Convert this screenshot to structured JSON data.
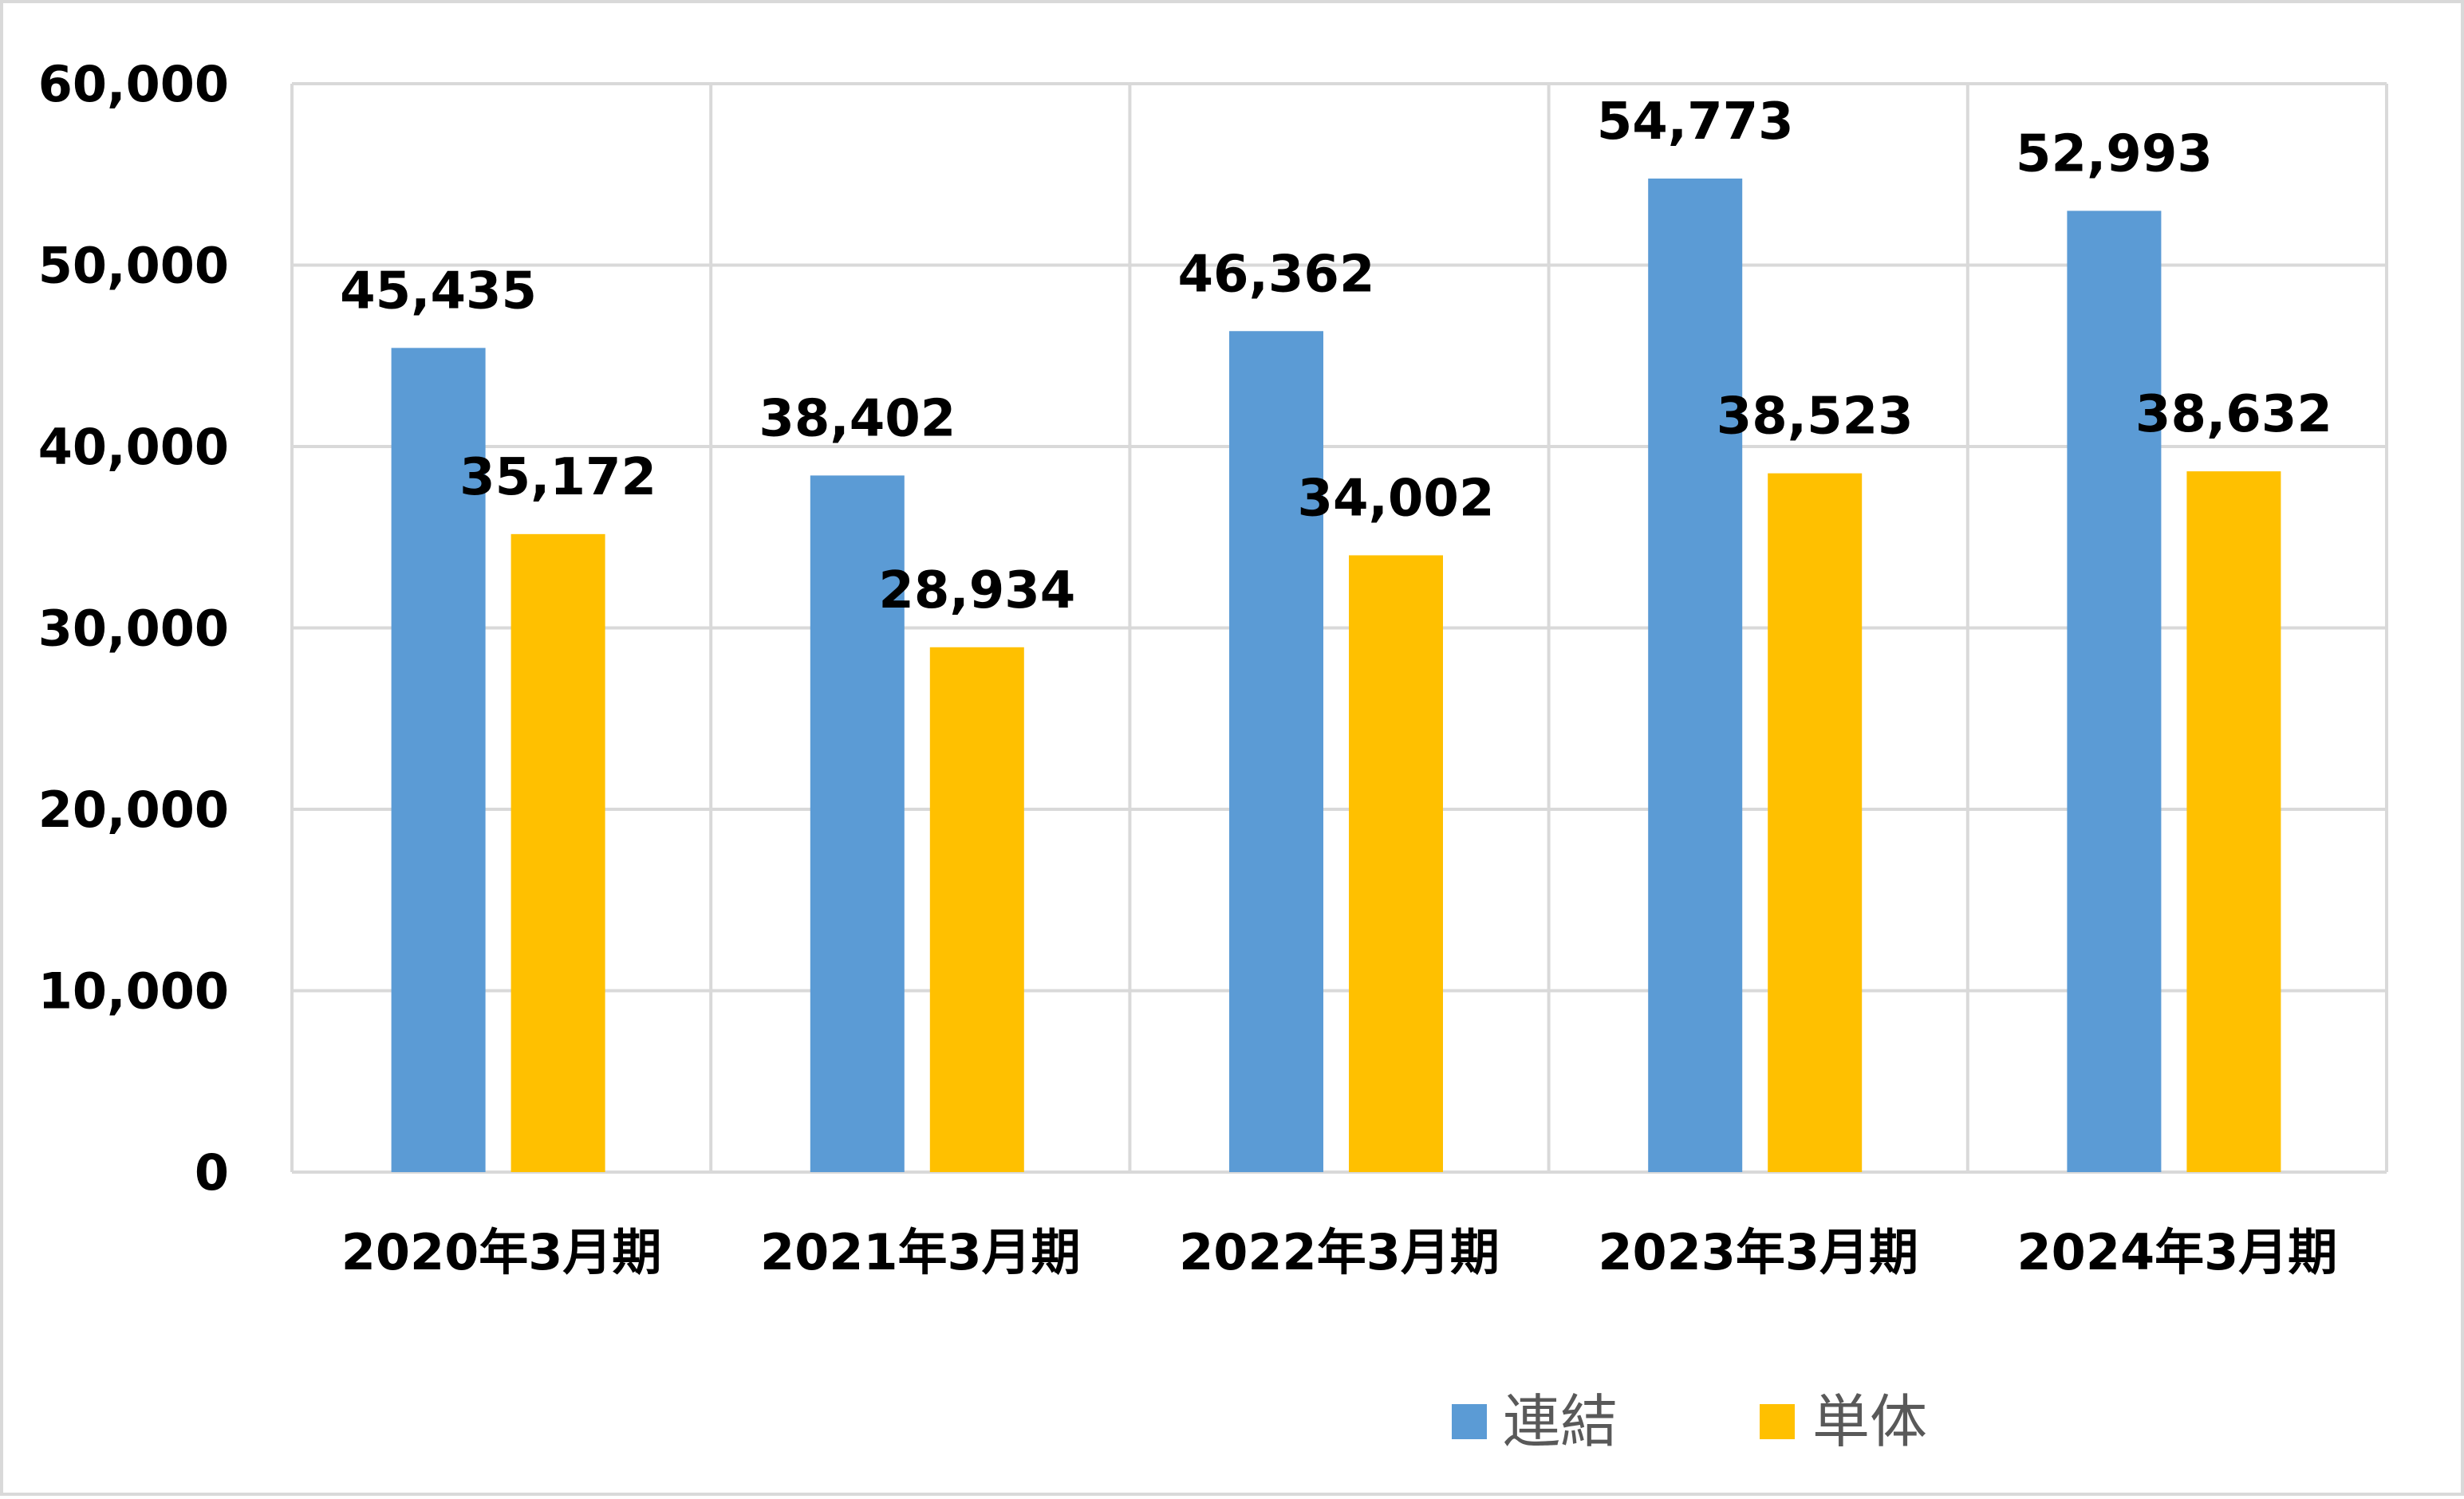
{
  "chart_data": {
    "type": "bar",
    "categories": [
      "2020年3月期",
      "2021年3月期",
      "2022年3月期",
      "2023年3月期",
      "2024年3月期"
    ],
    "series": [
      {
        "name": "連結",
        "color": "#5b9bd5",
        "values": [
          45435,
          38402,
          46362,
          54773,
          52993
        ],
        "labels": [
          "45,435",
          "38,402",
          "46,362",
          "54,773",
          "52,993"
        ]
      },
      {
        "name": "単体",
        "color": "#ffc000",
        "values": [
          35172,
          28934,
          34002,
          38523,
          38632
        ],
        "labels": [
          "35,172",
          "28,934",
          "34,002",
          "38,523",
          "38,632"
        ]
      }
    ],
    "ylim": [
      0,
      60000
    ],
    "yticks": [
      0,
      10000,
      20000,
      30000,
      40000,
      50000,
      60000
    ],
    "ytick_labels": [
      "0",
      "10,000",
      "20,000",
      "30,000",
      "40,000",
      "50,000",
      "60,000"
    ],
    "title": "",
    "xlabel": "",
    "ylabel": "",
    "grid": true,
    "legend_position": "bottom",
    "gridline_color": "#d9d9d9"
  }
}
